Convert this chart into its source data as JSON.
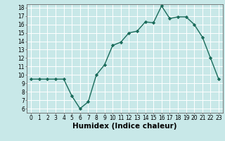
{
  "x": [
    0,
    1,
    2,
    3,
    4,
    5,
    6,
    7,
    8,
    9,
    10,
    11,
    12,
    13,
    14,
    15,
    16,
    17,
    18,
    19,
    20,
    21,
    22,
    23
  ],
  "y": [
    9.5,
    9.5,
    9.5,
    9.5,
    9.5,
    7.5,
    6.0,
    6.8,
    10.0,
    11.2,
    13.5,
    13.9,
    15.0,
    15.2,
    16.3,
    16.2,
    18.2,
    16.7,
    16.9,
    16.9,
    16.0,
    14.5,
    12.0,
    9.5
  ],
  "line_color": "#1a6b5a",
  "marker": "D",
  "marker_size": 2.2,
  "bg_color": "#c8e8e8",
  "grid_color": "#b0d8d8",
  "xlabel": "Humidex (Indice chaleur)",
  "xlim": [
    -0.5,
    23.5
  ],
  "ylim": [
    5.5,
    18.4
  ],
  "yticks": [
    6,
    7,
    8,
    9,
    10,
    11,
    12,
    13,
    14,
    15,
    16,
    17,
    18
  ],
  "xticks": [
    0,
    1,
    2,
    3,
    4,
    5,
    6,
    7,
    8,
    9,
    10,
    11,
    12,
    13,
    14,
    15,
    16,
    17,
    18,
    19,
    20,
    21,
    22,
    23
  ],
  "tick_fontsize": 5.5,
  "xlabel_fontsize": 7.5,
  "line_width": 1.0
}
